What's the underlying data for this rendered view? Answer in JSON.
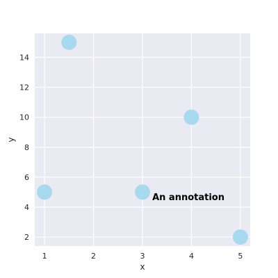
{
  "chart_data": {
    "type": "scatter",
    "title": "",
    "xlabel": "x",
    "ylabel": "y",
    "xlim": [
      0.8,
      5.2
    ],
    "ylim": [
      1.4,
      15.6
    ],
    "xticks": [
      1,
      2,
      3,
      4,
      5
    ],
    "yticks": [
      2,
      4,
      6,
      8,
      10,
      12,
      14
    ],
    "grid": true,
    "series": [
      {
        "x": [
          1,
          1.5,
          3,
          4,
          5
        ],
        "y": [
          5,
          15,
          5,
          10,
          2
        ]
      }
    ],
    "annotations": [
      {
        "text": "An annotation",
        "x": 3.2,
        "y": 4.7
      }
    ],
    "colors": {
      "background": "#eaeaf2",
      "grid": "#ffffff",
      "marker": "#a7d9ef"
    }
  }
}
